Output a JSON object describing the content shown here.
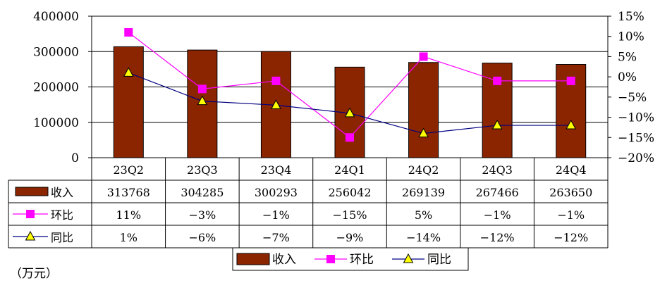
{
  "chart_data": {
    "type": "bar",
    "categories": [
      "23Q2",
      "23Q3",
      "23Q4",
      "24Q1",
      "24Q2",
      "24Q3",
      "24Q4"
    ],
    "y_left": {
      "min": 0,
      "max": 400000,
      "step": 100000,
      "ticks": [
        "0",
        "100000",
        "200000",
        "300000",
        "400000"
      ]
    },
    "y_right": {
      "min": -20,
      "max": 15,
      "step": 5,
      "ticks": [
        "15%",
        "10%",
        "5%",
        "0%",
        "-5%",
        "-10%",
        "-15%",
        "-20%"
      ]
    },
    "grid": "horizontal",
    "legend_position": "bottom",
    "series": [
      {
        "name": "收入",
        "kind": "bar",
        "axis": "left",
        "color": "#8B2500",
        "values": [
          313768,
          304285,
          300293,
          256042,
          269139,
          267466,
          263650
        ],
        "labels": [
          "313768",
          "304285",
          "300293",
          "256042",
          "269139",
          "267466",
          "263650"
        ]
      },
      {
        "name": "环比",
        "kind": "line",
        "marker": "square",
        "axis": "right",
        "color": "#FF00FF",
        "values": [
          11,
          -3,
          -1,
          -15,
          5,
          -1,
          -1
        ],
        "labels": [
          "11%",
          "-3%",
          "-1%",
          "-15%",
          "5%",
          "-1%",
          "-1%"
        ]
      },
      {
        "name": "同比",
        "kind": "line",
        "marker": "triangle",
        "axis": "right",
        "color": "#000080",
        "marker_fill": "#FFFF00",
        "values": [
          1,
          -6,
          -7,
          -9,
          -14,
          -12,
          -12
        ],
        "labels": [
          "1%",
          "-6%",
          "-7%",
          "-9%",
          "-14%",
          "-12%",
          "-12%"
        ]
      }
    ]
  },
  "unit_label": "（万元）"
}
